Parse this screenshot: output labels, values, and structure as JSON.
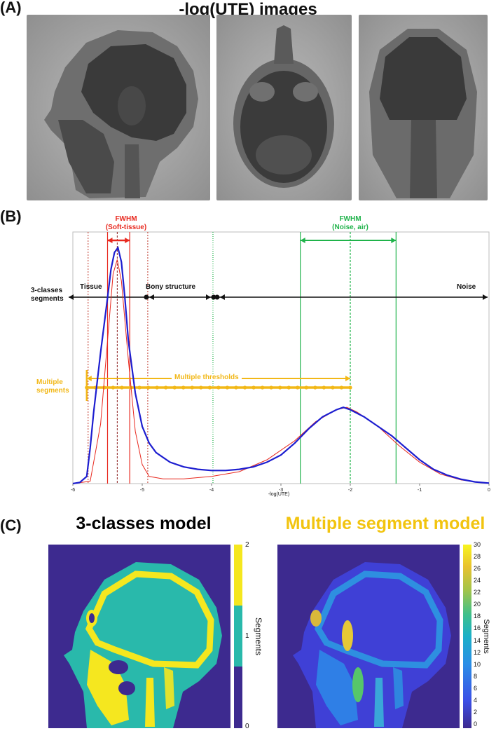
{
  "panel_a": {
    "letter": "(A)",
    "title": "-log(UTE) images",
    "views": [
      "sagittal-slice",
      "axial-slice",
      "coronal-slice"
    ]
  },
  "panel_b": {
    "letter": "(B)",
    "fwhm_soft": "FWHM",
    "fwhm_soft_sub": "(Soft-tissue)",
    "fwhm_noise": "FWHM",
    "fwhm_noise_sub": "(Noise, air)",
    "row1_label_a": "3-classes",
    "row1_label_b": "segments",
    "seg_tissue": "Tissue",
    "seg_bony": "Bony structure",
    "seg_noise": "Noise",
    "row2_label_a": "Multiple",
    "row2_label_b": "segments",
    "multi_label": "Multiple thresholds",
    "colors": {
      "red": "#e8281e",
      "green": "#1fb34a",
      "gold": "#f2b818",
      "blue": "#1d1ed0"
    }
  },
  "chart_data": {
    "type": "line",
    "xlabel": "-log(UTE)",
    "xlim": [
      -6,
      0
    ],
    "x_ticks": [
      "-6",
      "-5",
      "-4",
      "-3",
      "-2",
      "-1",
      "0"
    ],
    "series": [
      {
        "points": [
          [
            -6,
            0.0
          ],
          [
            -5.9,
            0.005
          ],
          [
            -5.8,
            0.03
          ],
          [
            -5.75,
            0.15
          ],
          [
            -5.7,
            0.3
          ],
          [
            -5.6,
            0.55
          ],
          [
            -5.5,
            0.78
          ],
          [
            -5.45,
            0.9
          ],
          [
            -5.4,
            0.97
          ],
          [
            -5.35,
            0.99
          ],
          [
            -5.3,
            0.93
          ],
          [
            -5.25,
            0.78
          ],
          [
            -5.2,
            0.6
          ],
          [
            -5.1,
            0.38
          ],
          [
            -5.0,
            0.24
          ],
          [
            -4.9,
            0.17
          ],
          [
            -4.8,
            0.13
          ],
          [
            -4.6,
            0.09
          ],
          [
            -4.4,
            0.07
          ],
          [
            -4.2,
            0.06
          ],
          [
            -4.0,
            0.055
          ],
          [
            -3.8,
            0.055
          ],
          [
            -3.6,
            0.06
          ],
          [
            -3.4,
            0.07
          ],
          [
            -3.2,
            0.09
          ],
          [
            -3.0,
            0.12
          ],
          [
            -2.8,
            0.17
          ],
          [
            -2.6,
            0.23
          ],
          [
            -2.4,
            0.28
          ],
          [
            -2.2,
            0.31
          ],
          [
            -2.1,
            0.32
          ],
          [
            -2.0,
            0.31
          ],
          [
            -1.8,
            0.28
          ],
          [
            -1.6,
            0.24
          ],
          [
            -1.4,
            0.2
          ],
          [
            -1.2,
            0.15
          ],
          [
            -1.0,
            0.1
          ],
          [
            -0.8,
            0.06
          ],
          [
            -0.6,
            0.035
          ],
          [
            -0.4,
            0.018
          ],
          [
            -0.2,
            0.007
          ],
          [
            0,
            0.002
          ]
        ]
      },
      {
        "points": [
          [
            -6,
            0.0
          ],
          [
            -5.75,
            0.01
          ],
          [
            -5.6,
            0.25
          ],
          [
            -5.5,
            0.6
          ],
          [
            -5.42,
            0.88
          ],
          [
            -5.36,
            0.94
          ],
          [
            -5.3,
            0.85
          ],
          [
            -5.2,
            0.52
          ],
          [
            -5.1,
            0.22
          ],
          [
            -5.0,
            0.08
          ],
          [
            -4.9,
            0.03
          ],
          [
            -4.7,
            0.02
          ],
          [
            -4.4,
            0.02
          ],
          [
            -4.0,
            0.03
          ],
          [
            -3.6,
            0.05
          ],
          [
            -3.2,
            0.1
          ],
          [
            -2.8,
            0.18
          ],
          [
            -2.5,
            0.26
          ],
          [
            -2.2,
            0.31
          ],
          [
            -2.05,
            0.32
          ],
          [
            -1.9,
            0.3
          ],
          [
            -1.6,
            0.24
          ],
          [
            -1.3,
            0.16
          ],
          [
            -1.0,
            0.09
          ],
          [
            -0.7,
            0.04
          ],
          [
            -0.4,
            0.015
          ],
          [
            0,
            0.002
          ]
        ]
      }
    ]
  },
  "panel_c": {
    "letter": "(C)",
    "left_title": "3-classes model",
    "right_title": "Multiple segment model",
    "left_cbar_label": "Segments",
    "right_cbar_label": "Segments",
    "left_ticks": [
      "2",
      "1",
      "0"
    ],
    "right_ticks": [
      "30",
      "28",
      "26",
      "24",
      "22",
      "20",
      "18",
      "16",
      "14",
      "12",
      "10",
      "8",
      "6",
      "4",
      "2",
      "0"
    ]
  }
}
